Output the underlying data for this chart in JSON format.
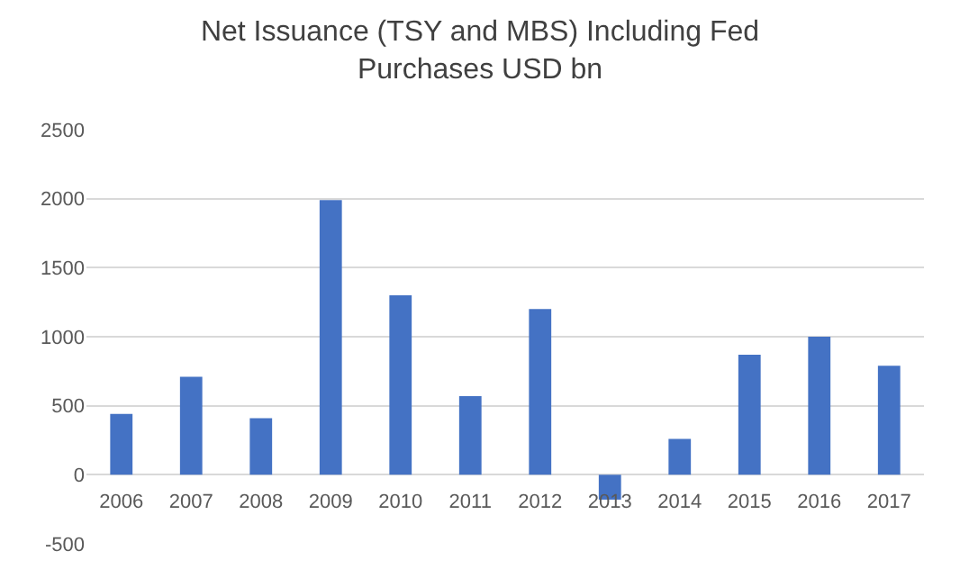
{
  "chart_data": {
    "type": "bar",
    "title": "Net Issuance (TSY and MBS) Including Fed\nPurchases USD bn",
    "categories": [
      "2006",
      "2007",
      "2008",
      "2009",
      "2010",
      "2011",
      "2012",
      "2013",
      "2014",
      "2015",
      "2016",
      "2017"
    ],
    "values": [
      440,
      710,
      410,
      1990,
      1300,
      570,
      1200,
      -180,
      260,
      870,
      1000,
      790
    ],
    "color": "#4472c4",
    "ylim": [
      -500,
      2500
    ],
    "yticks": [
      -500,
      0,
      500,
      1000,
      1500,
      2000,
      2500
    ],
    "grid": "y"
  }
}
